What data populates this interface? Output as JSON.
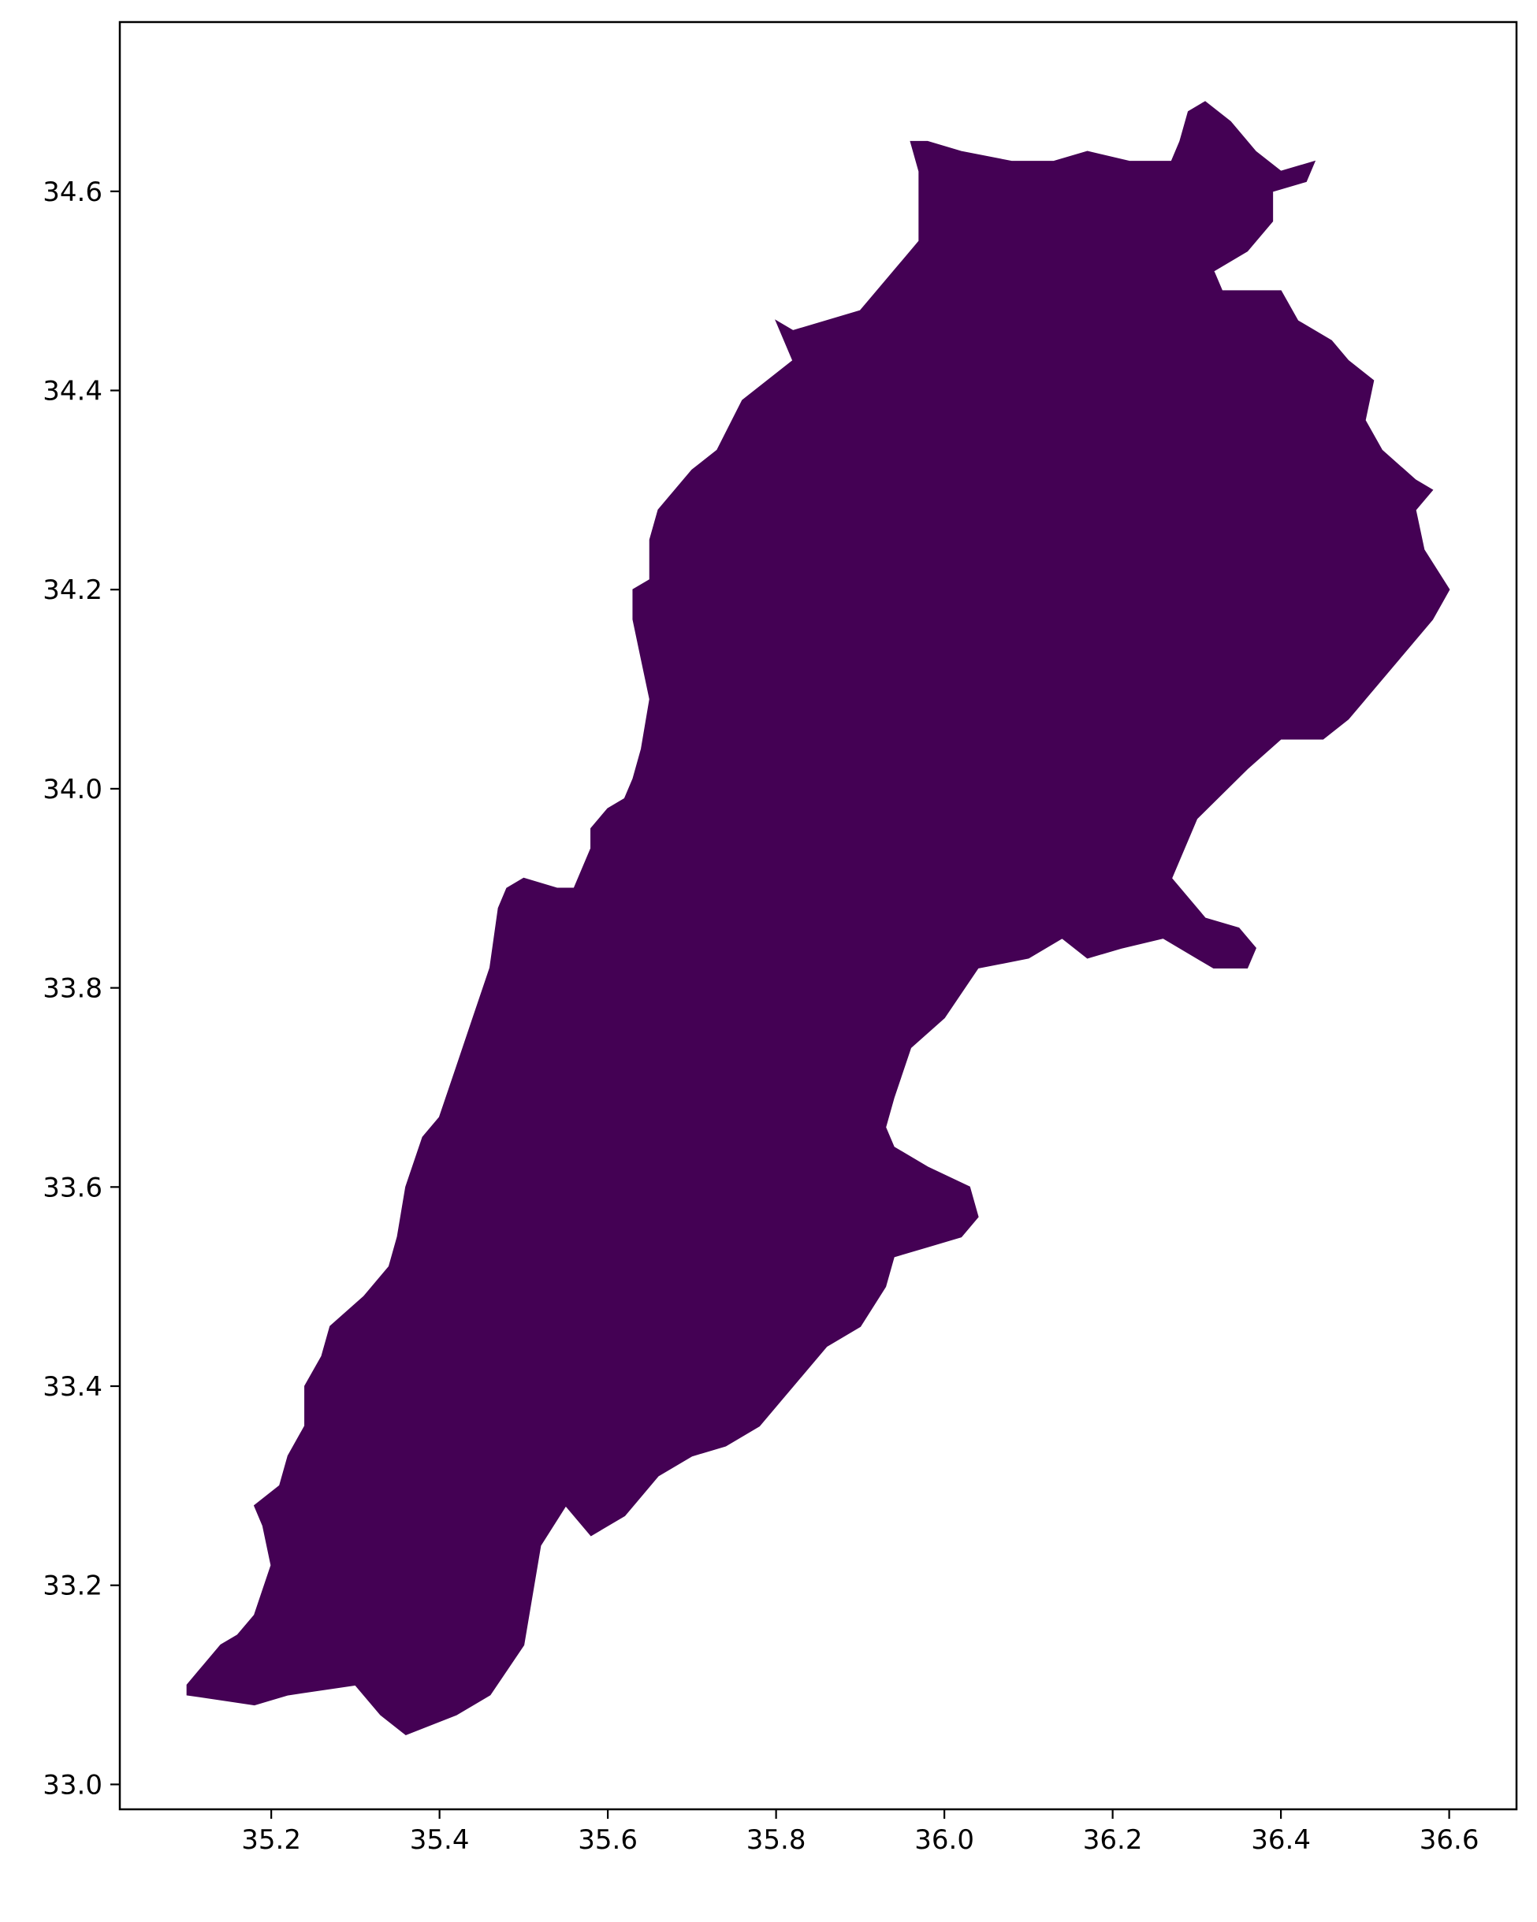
{
  "chart_data": {
    "type": "map",
    "region": "Lebanon",
    "fill_color": "#440154",
    "edge_color": "#440154",
    "xlim": [
      35.02,
      36.68
    ],
    "ylim": [
      32.975,
      34.77
    ],
    "x_ticks": [
      "35.2",
      "35.4",
      "35.6",
      "35.8",
      "36.0",
      "36.2",
      "36.4",
      "36.6"
    ],
    "y_ticks": [
      "33.0",
      "33.2",
      "33.4",
      "33.6",
      "33.8",
      "34.0",
      "34.2",
      "34.4",
      "34.6"
    ],
    "grid": false,
    "boundary_lonlat": [
      [
        35.1,
        33.09
      ],
      [
        35.18,
        33.08
      ],
      [
        35.22,
        33.09
      ],
      [
        35.3,
        33.1
      ],
      [
        35.33,
        33.07
      ],
      [
        35.36,
        33.05
      ],
      [
        35.42,
        33.07
      ],
      [
        35.46,
        33.09
      ],
      [
        35.5,
        33.14
      ],
      [
        35.52,
        33.24
      ],
      [
        35.55,
        33.28
      ],
      [
        35.58,
        33.25
      ],
      [
        35.62,
        33.27
      ],
      [
        35.66,
        33.31
      ],
      [
        35.7,
        33.33
      ],
      [
        35.74,
        33.34
      ],
      [
        35.78,
        33.36
      ],
      [
        35.82,
        33.4
      ],
      [
        35.86,
        33.44
      ],
      [
        35.9,
        33.46
      ],
      [
        35.93,
        33.5
      ],
      [
        35.94,
        33.53
      ],
      [
        35.98,
        33.54
      ],
      [
        36.02,
        33.55
      ],
      [
        36.04,
        33.57
      ],
      [
        36.03,
        33.6
      ],
      [
        35.98,
        33.62
      ],
      [
        35.94,
        33.64
      ],
      [
        35.93,
        33.66
      ],
      [
        35.94,
        33.69
      ],
      [
        35.96,
        33.74
      ],
      [
        36.0,
        33.77
      ],
      [
        36.04,
        33.82
      ],
      [
        36.1,
        33.83
      ],
      [
        36.14,
        33.85
      ],
      [
        36.17,
        33.83
      ],
      [
        36.21,
        33.84
      ],
      [
        36.26,
        33.85
      ],
      [
        36.32,
        33.82
      ],
      [
        36.36,
        33.82
      ],
      [
        36.37,
        33.84
      ],
      [
        36.35,
        33.86
      ],
      [
        36.31,
        33.87
      ],
      [
        36.27,
        33.91
      ],
      [
        36.3,
        33.97
      ],
      [
        36.36,
        34.02
      ],
      [
        36.4,
        34.05
      ],
      [
        36.45,
        34.05
      ],
      [
        36.48,
        34.07
      ],
      [
        36.5,
        34.09
      ],
      [
        36.54,
        34.13
      ],
      [
        36.58,
        34.17
      ],
      [
        36.6,
        34.2
      ],
      [
        36.57,
        34.24
      ],
      [
        36.56,
        34.28
      ],
      [
        36.58,
        34.3
      ],
      [
        36.56,
        34.31
      ],
      [
        36.52,
        34.34
      ],
      [
        36.5,
        34.37
      ],
      [
        36.51,
        34.41
      ],
      [
        36.48,
        34.43
      ],
      [
        36.46,
        34.45
      ],
      [
        36.42,
        34.47
      ],
      [
        36.4,
        34.5
      ],
      [
        36.37,
        34.5
      ],
      [
        36.33,
        34.5
      ],
      [
        36.32,
        34.52
      ],
      [
        36.36,
        34.54
      ],
      [
        36.39,
        34.57
      ],
      [
        36.39,
        34.6
      ],
      [
        36.43,
        34.61
      ],
      [
        36.44,
        34.63
      ],
      [
        36.4,
        34.62
      ],
      [
        36.37,
        34.64
      ],
      [
        36.34,
        34.67
      ],
      [
        36.31,
        34.69
      ],
      [
        36.29,
        34.68
      ],
      [
        36.28,
        34.65
      ],
      [
        36.27,
        34.63
      ],
      [
        36.22,
        34.63
      ],
      [
        36.17,
        34.64
      ],
      [
        36.13,
        34.63
      ],
      [
        36.08,
        34.63
      ],
      [
        36.02,
        34.64
      ],
      [
        35.98,
        34.65
      ],
      [
        35.96,
        34.65
      ],
      [
        35.97,
        34.62
      ],
      [
        35.97,
        34.55
      ],
      [
        35.94,
        34.52
      ],
      [
        35.9,
        34.48
      ],
      [
        35.82,
        34.46
      ],
      [
        35.8,
        34.47
      ],
      [
        35.82,
        34.43
      ],
      [
        35.76,
        34.39
      ],
      [
        35.73,
        34.34
      ],
      [
        35.7,
        34.32
      ],
      [
        35.68,
        34.3
      ],
      [
        35.66,
        34.28
      ],
      [
        35.65,
        34.25
      ],
      [
        35.65,
        34.21
      ],
      [
        35.63,
        34.2
      ],
      [
        35.63,
        34.17
      ],
      [
        35.64,
        34.13
      ],
      [
        35.65,
        34.09
      ],
      [
        35.64,
        34.04
      ],
      [
        35.63,
        34.01
      ],
      [
        35.62,
        33.99
      ],
      [
        35.6,
        33.98
      ],
      [
        35.58,
        33.96
      ],
      [
        35.58,
        33.94
      ],
      [
        35.56,
        33.9
      ],
      [
        35.54,
        33.9
      ],
      [
        35.5,
        33.91
      ],
      [
        35.48,
        33.9
      ],
      [
        35.47,
        33.88
      ],
      [
        35.46,
        33.82
      ],
      [
        35.44,
        33.77
      ],
      [
        35.42,
        33.72
      ],
      [
        35.4,
        33.67
      ],
      [
        35.38,
        33.65
      ],
      [
        35.36,
        33.6
      ],
      [
        35.35,
        33.55
      ],
      [
        35.34,
        33.52
      ],
      [
        35.31,
        33.49
      ],
      [
        35.27,
        33.46
      ],
      [
        35.26,
        33.43
      ],
      [
        35.24,
        33.4
      ],
      [
        35.24,
        33.36
      ],
      [
        35.22,
        33.33
      ],
      [
        35.21,
        33.3
      ],
      [
        35.18,
        33.28
      ],
      [
        35.19,
        33.26
      ],
      [
        35.2,
        33.22
      ],
      [
        35.18,
        33.17
      ],
      [
        35.16,
        33.15
      ],
      [
        35.14,
        33.14
      ],
      [
        35.12,
        33.12
      ],
      [
        35.1,
        33.1
      ]
    ]
  }
}
